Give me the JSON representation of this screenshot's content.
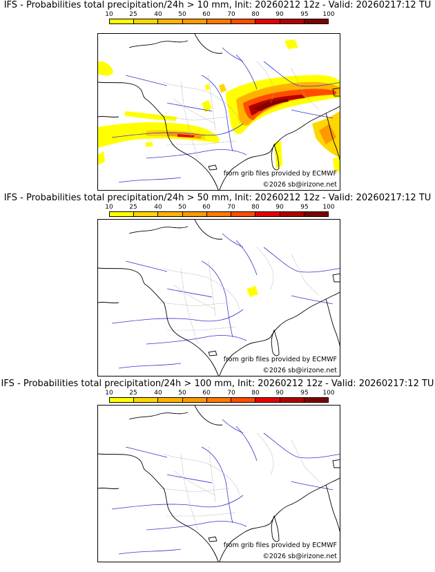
{
  "colors": {
    "c10": "#ffff00",
    "c25": "#ffd700",
    "c40": "#ffb300",
    "c50": "#ff9900",
    "c60": "#ff7a00",
    "c70": "#ff4d00",
    "c80": "#e60000",
    "c90": "#b30000",
    "c95": "#800000",
    "c100": "#4d0000",
    "coast": "#000000",
    "rivers": "#3333cc",
    "borders": "#aaaaaa"
  },
  "legend": {
    "ticks": [
      "10",
      "25",
      "40",
      "50",
      "60",
      "70",
      "80",
      "90",
      "95",
      "100"
    ]
  },
  "credits": {
    "source": "from grib files provided by ECMWF",
    "copyright": "©2026 sb@irizone.net"
  },
  "panels": [
    {
      "title": "IFS - Probabilities total precipitation/24h > 10 mm, Init: 20260212 12z - Valid: 20260217:12 TU",
      "threshold_mm": 10,
      "intensity": "high"
    },
    {
      "title": "IFS - Probabilities total precipitation/24h > 50 mm, Init: 20260212 12z - Valid: 20260217:12 TU",
      "threshold_mm": 50,
      "intensity": "low"
    },
    {
      "title": "IFS - Probabilities total precipitation/24h > 100 mm, Init: 20260212 12z - Valid: 20260217:12 TU",
      "threshold_mm": 100,
      "intensity": "none"
    }
  ]
}
